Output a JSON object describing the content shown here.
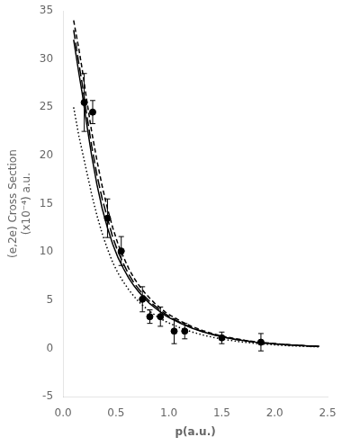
{
  "chart_data": {
    "type": "line",
    "title": "",
    "xlabel": "p(a.u.)",
    "ylabel": [
      "(e,2e) Cross Section",
      "(x10⁻⁴) a.u."
    ],
    "xlim": [
      0.0,
      2.5
    ],
    "ylim": [
      -5,
      35
    ],
    "xticks": [
      {
        "value": 0.0,
        "label": "0.0"
      },
      0.5,
      {
        "value": 1.0,
        "label": "1.0"
      },
      {
        "value": 1.5,
        "label": "1.5"
      },
      {
        "value": 2.0,
        "label": "2.0"
      },
      2.5
    ],
    "yticks": [
      -5,
      0,
      5,
      10,
      15,
      20,
      25,
      30,
      35
    ],
    "grid": false,
    "series": [
      {
        "type": "line",
        "color": "black",
        "line_style": "solid",
        "marker": "none",
        "x": [
          0.1,
          0.15,
          0.18,
          0.22,
          0.27,
          0.32,
          0.37,
          0.42,
          0.47,
          0.52,
          0.57,
          0.62,
          0.67,
          0.72,
          0.77,
          0.82,
          0.87,
          0.92,
          0.97,
          1.02,
          1.12,
          1.22,
          1.32,
          1.42,
          1.52,
          1.62,
          1.72,
          1.82,
          1.92,
          2.02,
          2.12,
          2.22,
          2.32,
          2.42
        ],
        "values": [
          32,
          28.5,
          26.5,
          23.5,
          20.0,
          17.0,
          14.5,
          12.5,
          10.8,
          9.4,
          8.3,
          7.3,
          6.5,
          5.8,
          5.2,
          4.65,
          4.2,
          3.8,
          3.4,
          3.1,
          2.55,
          2.1,
          1.72,
          1.42,
          1.17,
          0.97,
          0.8,
          0.66,
          0.55,
          0.46,
          0.38,
          0.32,
          0.27,
          0.22
        ]
      },
      {
        "type": "line",
        "color": "black",
        "line_style": "long_dash",
        "marker": "none",
        "x": [
          0.1,
          0.15,
          0.18,
          0.22,
          0.27,
          0.32,
          0.37,
          0.42,
          0.47,
          0.52,
          0.57,
          0.62,
          0.67,
          0.72,
          0.77,
          0.82,
          0.87,
          0.92,
          0.97,
          1.02,
          1.12,
          1.22,
          1.32,
          1.42,
          1.52,
          1.62,
          1.72,
          1.82,
          1.92,
          2.02,
          2.12,
          2.22,
          2.32,
          2.42
        ],
        "values": [
          33,
          29.5,
          27.5,
          24.5,
          21.0,
          18.0,
          15.5,
          13.5,
          11.5,
          10.0,
          8.8,
          7.7,
          6.8,
          6.1,
          5.4,
          4.85,
          4.4,
          3.95,
          3.55,
          3.2,
          2.62,
          2.15,
          1.75,
          1.44,
          1.18,
          0.97,
          0.8,
          0.66,
          0.55,
          0.45,
          0.38,
          0.31,
          0.26,
          0.22
        ]
      },
      {
        "type": "line",
        "color": "black",
        "line_style": "dash",
        "marker": "none",
        "x": [
          0.1,
          0.15,
          0.18,
          0.22,
          0.27,
          0.32,
          0.37,
          0.42,
          0.47,
          0.52,
          0.57,
          0.62,
          0.67,
          0.72,
          0.77,
          0.82,
          0.87,
          0.92,
          0.97,
          1.02,
          1.12,
          1.22,
          1.32,
          1.42,
          1.52,
          1.62,
          1.72,
          1.82,
          1.92,
          2.02,
          2.12,
          2.22,
          2.32,
          2.42
        ],
        "values": [
          34,
          31.0,
          29.0,
          26.0,
          22.5,
          19.5,
          16.8,
          14.5,
          12.5,
          10.8,
          9.5,
          8.3,
          7.3,
          6.5,
          5.8,
          5.2,
          4.65,
          4.2,
          3.75,
          3.4,
          2.78,
          2.27,
          1.86,
          1.52,
          1.25,
          1.03,
          0.85,
          0.7,
          0.58,
          0.48,
          0.4,
          0.33,
          0.27,
          0.23
        ]
      },
      {
        "type": "line",
        "color": "black",
        "line_style": "dotted",
        "marker": "none",
        "x": [
          0.1,
          0.15,
          0.18,
          0.22,
          0.27,
          0.32,
          0.37,
          0.42,
          0.47,
          0.52,
          0.57,
          0.62,
          0.67,
          0.72,
          0.77,
          0.82,
          0.87,
          0.92,
          0.97,
          1.02,
          1.12,
          1.22,
          1.32,
          1.42,
          1.52,
          1.62,
          1.72,
          1.82,
          1.92,
          2.02,
          2.12,
          2.22,
          2.32,
          2.42
        ],
        "values": [
          25,
          22.0,
          20.5,
          18.5,
          16.0,
          13.8,
          11.9,
          10.3,
          8.9,
          7.8,
          6.9,
          6.1,
          5.4,
          4.8,
          4.3,
          3.85,
          3.45,
          3.1,
          2.8,
          2.55,
          2.08,
          1.71,
          1.4,
          1.15,
          0.95,
          0.78,
          0.64,
          0.53,
          0.44,
          0.37,
          0.3,
          0.25,
          0.21,
          0.17
        ]
      },
      {
        "type": "scatter",
        "color": "black",
        "marker": "circle",
        "x": [
          0.2,
          0.28,
          0.42,
          0.55,
          0.75,
          0.82,
          0.92,
          1.05,
          1.15,
          1.5,
          1.87
        ],
        "values": [
          25.5,
          24.5,
          13.5,
          10.1,
          5.1,
          3.3,
          3.3,
          1.8,
          1.8,
          1.1,
          0.65
        ],
        "error": [
          3.0,
          1.2,
          2.0,
          1.5,
          1.3,
          0.7,
          1.0,
          1.3,
          0.8,
          0.6,
          0.9
        ]
      }
    ]
  }
}
